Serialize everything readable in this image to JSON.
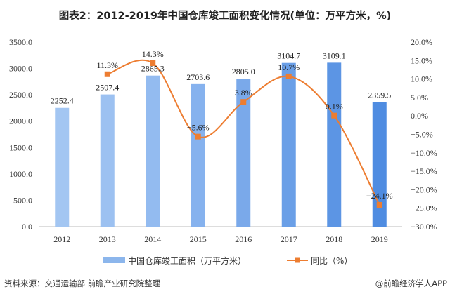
{
  "chart_data": {
    "type": "bar+line",
    "title": "图表2：2012-2019年中国仓库竣工面积变化情况(单位：万平方米，%)",
    "categories": [
      "2012",
      "2013",
      "2014",
      "2015",
      "2016",
      "2017",
      "2018",
      "2019"
    ],
    "series": [
      {
        "name": "中国仓库竣工面积（万平方米）",
        "type": "bar",
        "axis": "left",
        "values": [
          2252.4,
          2507.4,
          2865.3,
          2703.6,
          2805.0,
          3104.7,
          3109.1,
          2359.5
        ],
        "labels": [
          "2252.4",
          "2507.4",
          "2865.3",
          "2703.6",
          "2805.0",
          "3104.7",
          "3109.1",
          "2359.5"
        ],
        "color": "#7aaae8"
      },
      {
        "name": "同比（%）",
        "type": "line",
        "axis": "right",
        "values": [
          null,
          11.3,
          14.3,
          -5.6,
          3.8,
          10.7,
          0.1,
          -24.1
        ],
        "labels": [
          "",
          "11.3%",
          "14.3%",
          "-5.6%",
          "3.8%",
          "10.7%",
          "0.1%",
          "-24.1%"
        ],
        "color": "#ed7d31"
      }
    ],
    "y_left": {
      "range": [
        0,
        3500
      ],
      "ticks": [
        "0.0",
        "500.0",
        "1000.0",
        "1500.0",
        "2000.0",
        "2500.0",
        "3000.0",
        "3500.0"
      ]
    },
    "y_right": {
      "range": [
        -30,
        20
      ],
      "ticks": [
        "-30.0%",
        "-25.0%",
        "-20.0%",
        "-15.0%",
        "-10.0%",
        "-5.0%",
        "0.0%",
        "5.0%",
        "10.0%",
        "15.0%",
        "20.0%"
      ]
    },
    "grid": false,
    "legend": "bottom"
  },
  "footer": {
    "source": "资料来源：交通运输部 前瞻产业研究院整理",
    "credit": "@前瞻经济学人APP"
  }
}
